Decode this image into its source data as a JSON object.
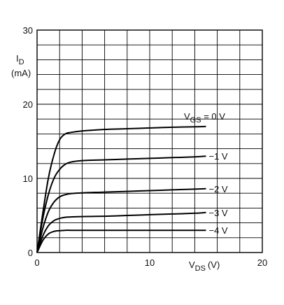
{
  "chart_data": {
    "type": "line",
    "title": "",
    "xlabel": {
      "main": "V",
      "sub": "DS",
      "unit": "(V)"
    },
    "ylabel": {
      "main": "I",
      "sub": "D",
      "unit": "(mA)"
    },
    "xlim": [
      0,
      20
    ],
    "ylim": [
      0,
      30
    ],
    "xticks": [
      0,
      10,
      20
    ],
    "yticks": [
      0,
      10,
      20,
      30
    ],
    "grid": true,
    "legend_title": {
      "main": "V",
      "sub": "GS",
      "rest": " = 0 V"
    },
    "series": [
      {
        "label": "= 0 V",
        "x": [
          0,
          0.5,
          1,
          1.5,
          2,
          2.5,
          3,
          4,
          6,
          8,
          10,
          12,
          14,
          15
        ],
        "y": [
          0,
          5.2,
          10,
          13.2,
          15.2,
          16,
          16.2,
          16.4,
          16.6,
          16.7,
          16.8,
          16.9,
          16.95,
          17
        ]
      },
      {
        "label": "−1 V",
        "x": [
          0,
          0.5,
          1,
          1.5,
          2,
          2.5,
          3,
          4,
          6,
          8,
          10,
          12,
          14,
          15
        ],
        "y": [
          0,
          4.5,
          7.8,
          10,
          11.2,
          11.9,
          12.2,
          12.4,
          12.5,
          12.6,
          12.7,
          12.8,
          12.9,
          13
        ]
      },
      {
        "label": "−2 V",
        "x": [
          0,
          0.5,
          1,
          1.5,
          2,
          2.5,
          3,
          4,
          6,
          8,
          10,
          12,
          14,
          15
        ],
        "y": [
          0,
          3.2,
          5.5,
          6.8,
          7.5,
          7.8,
          7.95,
          8.05,
          8.15,
          8.25,
          8.35,
          8.45,
          8.55,
          8.6
        ]
      },
      {
        "label": "−3 V",
        "x": [
          0,
          0.5,
          1,
          1.5,
          2,
          2.5,
          3,
          4,
          6,
          8,
          10,
          12,
          14,
          15
        ],
        "y": [
          0,
          2.2,
          3.6,
          4.3,
          4.6,
          4.75,
          4.8,
          4.85,
          4.9,
          5.0,
          5.1,
          5.2,
          5.3,
          5.4
        ]
      },
      {
        "label": "−4 V",
        "x": [
          0,
          0.5,
          1,
          1.5,
          2,
          2.5,
          3,
          4,
          6,
          8,
          10,
          12,
          14,
          15
        ],
        "y": [
          0,
          1.6,
          2.5,
          2.85,
          2.95,
          3.0,
          3.0,
          3.0,
          3.0,
          3.0,
          3.0,
          3.0,
          3.0,
          3.0
        ]
      }
    ]
  }
}
